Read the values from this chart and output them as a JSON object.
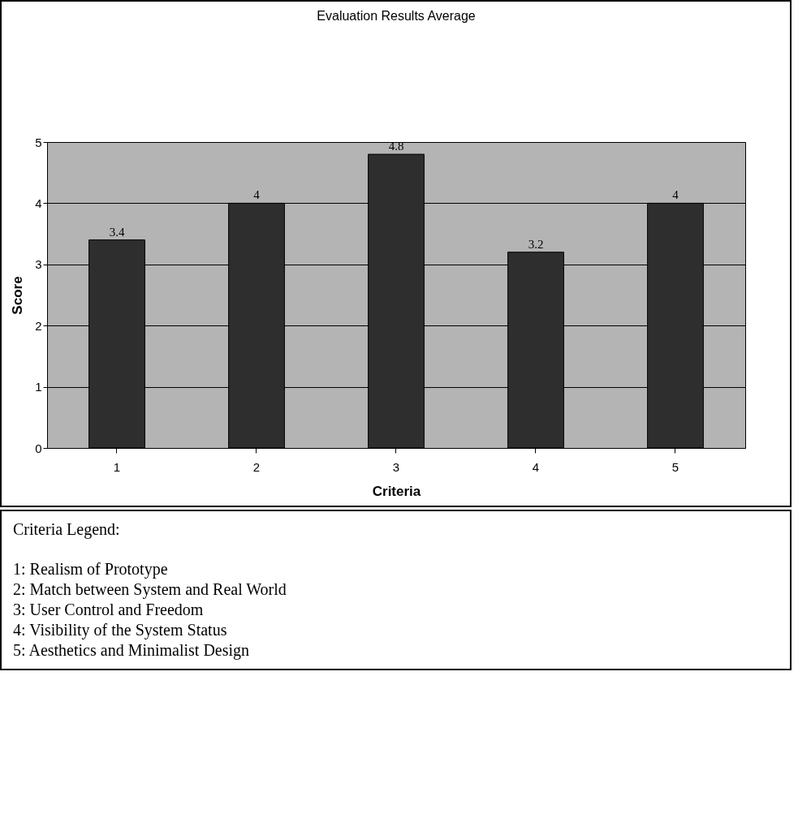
{
  "chart_data": {
    "type": "bar",
    "title": "Evaluation Results Average",
    "xlabel": "Criteria",
    "ylabel": "Score",
    "categories": [
      "1",
      "2",
      "3",
      "4",
      "5"
    ],
    "values": [
      3.4,
      4,
      4.8,
      3.2,
      4
    ],
    "color": "#2e2e2e",
    "ylim": [
      0,
      5
    ],
    "yticks": [
      0,
      1,
      2,
      3,
      4,
      5
    ],
    "grid": "y",
    "data_labels": true,
    "annotations": [
      "Criteria Legend:",
      "1: Realism of Prototype",
      "2: Match between System and Real World",
      "3: User Control and Freedom",
      "4: Visibility of the System Status",
      "5: Aesthetics and Minimalist Design"
    ]
  }
}
